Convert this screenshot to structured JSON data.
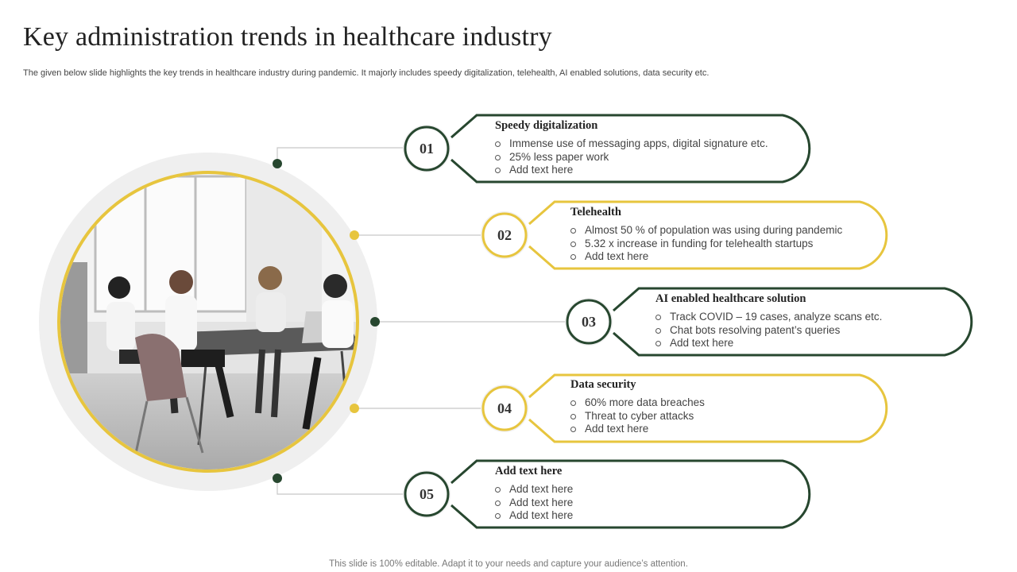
{
  "title": "Key administration trends in healthcare industry",
  "subtitle": "The given below slide highlights the key trends in healthcare industry during pandemic. It majorly includes speedy digitalization, telehealth, AI enabled solutions, data security etc.",
  "footer": "This slide is 100% editable. Adapt it to your needs and capture your audience’s attention.",
  "colors": {
    "dark_green": "#27472f",
    "yellow": "#e7c53e",
    "ring_gray": "#efefef",
    "connector_gray": "#c8c8c8"
  },
  "image": {
    "description_icon": "team-meeting-photo"
  },
  "trends": [
    {
      "number": "01",
      "heading": "Speedy digitalization",
      "color": "dark_green",
      "bullets": [
        "Immense use of messaging apps, digital signature etc.",
        "25% less paper work",
        "Add text here"
      ]
    },
    {
      "number": "02",
      "heading": "Telehealth",
      "color": "yellow",
      "bullets": [
        "Almost 50 % of population was using during pandemic",
        "5.32 x increase in funding for telehealth startups",
        "Add text here"
      ]
    },
    {
      "number": "03",
      "heading": "AI enabled healthcare solution",
      "color": "dark_green",
      "bullets": [
        "Track COVID – 19 cases, analyze scans etc.",
        "Chat bots resolving patent’s queries",
        "Add text here"
      ]
    },
    {
      "number": "04",
      "heading": "Data security",
      "color": "yellow",
      "bullets": [
        "60% more data breaches",
        "Threat to cyber attacks",
        "Add text here"
      ]
    },
    {
      "number": "05",
      "heading": "Add text here",
      "color": "dark_green",
      "bullets": [
        "Add text here",
        "Add text here",
        "Add text here"
      ]
    }
  ]
}
